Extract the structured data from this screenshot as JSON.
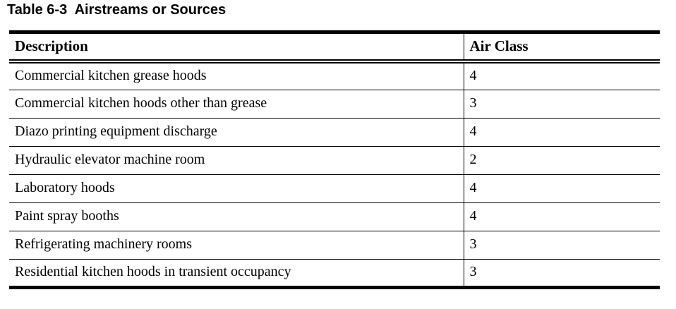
{
  "page": {
    "background_color": "#ffffff",
    "text_color": "#000000",
    "rule_color": "#000000"
  },
  "title": "Table 6-3  Airstreams or Sources",
  "table": {
    "columns": [
      {
        "key": "description",
        "label": "Description"
      },
      {
        "key": "air_class",
        "label": "Air Class"
      }
    ],
    "rows": [
      {
        "description": "Commercial kitchen grease hoods",
        "air_class": "4"
      },
      {
        "description": "Commercial kitchen hoods other than grease",
        "air_class": "3"
      },
      {
        "description": "Diazo printing equipment discharge",
        "air_class": "4"
      },
      {
        "description": "Hydraulic elevator machine room",
        "air_class": "2"
      },
      {
        "description": "Laboratory hoods",
        "air_class": "4"
      },
      {
        "description": "Paint spray booths",
        "air_class": "4"
      },
      {
        "description": "Refrigerating machinery rooms",
        "air_class": "3"
      },
      {
        "description": "Residential kitchen hoods in transient occupancy",
        "air_class": "3"
      }
    ]
  }
}
